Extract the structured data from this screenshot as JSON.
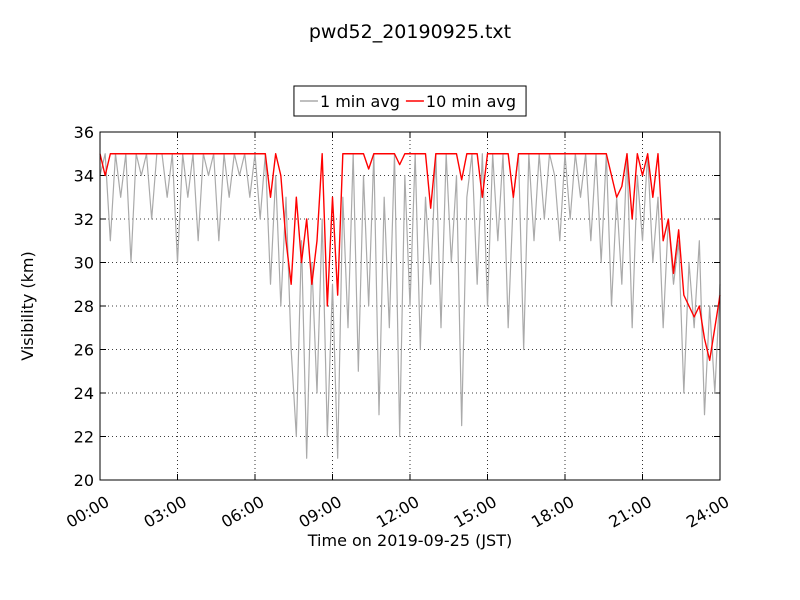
{
  "chart_data": {
    "type": "line",
    "title": "pwd52_20190925.txt",
    "xlabel": "Time on 2019-09-25 (JST)",
    "ylabel": "Visibility (km)",
    "x": [
      0,
      0.2,
      0.4,
      0.6,
      0.8,
      1,
      1.2,
      1.4,
      1.6,
      1.8,
      2,
      2.2,
      2.4,
      2.6,
      2.8,
      3,
      3.2,
      3.4,
      3.6,
      3.8,
      4,
      4.2,
      4.4,
      4.6,
      4.8,
      5,
      5.2,
      5.4,
      5.6,
      5.8,
      6,
      6.2,
      6.4,
      6.6,
      6.8,
      7,
      7.2,
      7.4,
      7.6,
      7.8,
      8,
      8.2,
      8.4,
      8.6,
      8.8,
      9,
      9.2,
      9.4,
      9.6,
      9.8,
      10,
      10.2,
      10.4,
      10.6,
      10.8,
      11,
      11.2,
      11.4,
      11.6,
      11.8,
      12,
      12.2,
      12.4,
      12.6,
      12.8,
      13,
      13.2,
      13.4,
      13.6,
      13.8,
      14,
      14.2,
      14.4,
      14.6,
      14.8,
      15,
      15.2,
      15.4,
      15.6,
      15.8,
      16,
      16.2,
      16.4,
      16.6,
      16.8,
      17,
      17.2,
      17.4,
      17.6,
      17.8,
      18,
      18.2,
      18.4,
      18.6,
      18.8,
      19,
      19.2,
      19.4,
      19.6,
      19.8,
      20,
      20.2,
      20.4,
      20.6,
      20.8,
      21,
      21.2,
      21.4,
      21.6,
      21.8,
      22,
      22.2,
      22.4,
      22.6,
      22.8,
      23,
      23.2,
      23.4,
      23.6,
      23.8,
      24
    ],
    "series": [
      {
        "name": "1 min avg",
        "color": "#aaaaaa",
        "values": [
          34,
          35,
          31,
          35,
          33,
          35,
          30,
          35,
          34,
          35,
          32,
          35,
          35,
          33,
          35,
          30,
          35,
          33,
          35,
          31,
          35,
          34,
          35,
          31,
          35,
          33,
          35,
          34,
          35,
          33,
          35,
          32,
          35,
          29,
          34,
          28,
          33,
          26,
          22,
          31,
          21,
          30,
          24,
          32,
          22,
          29,
          21,
          33,
          27,
          35,
          25,
          34,
          28,
          35,
          23,
          33,
          27,
          35,
          22,
          34,
          28,
          35,
          26,
          33,
          29,
          35,
          27,
          35,
          30,
          34,
          22.5,
          33,
          35,
          29,
          35,
          28,
          35,
          31,
          35,
          27,
          33,
          35,
          26,
          35,
          31,
          35,
          32,
          35,
          34,
          31,
          35,
          32,
          35,
          33,
          35,
          31,
          35,
          30,
          35,
          28,
          33,
          29,
          35,
          27,
          34,
          31,
          35,
          30,
          33,
          27,
          32,
          29,
          31,
          24,
          30,
          27,
          31,
          23,
          28,
          24,
          29
        ]
      },
      {
        "name": "10 min avg",
        "color": "#ff0000",
        "values": [
          35,
          34,
          35,
          35,
          35,
          35,
          35,
          35,
          35,
          35,
          35,
          35,
          35,
          35,
          35,
          35,
          35,
          35,
          35,
          35,
          35,
          35,
          35,
          35,
          35,
          35,
          35,
          35,
          35,
          35,
          35,
          35,
          35,
          33,
          35,
          34,
          31,
          29,
          33,
          30,
          32,
          29,
          31,
          35,
          28,
          33,
          28.5,
          35,
          35,
          35,
          35,
          35,
          34.3,
          35,
          35,
          35,
          35,
          35,
          34.5,
          35,
          35,
          35,
          35,
          35,
          32.5,
          35,
          35,
          35,
          35,
          35,
          33.8,
          35,
          35,
          35,
          33,
          35,
          35,
          35,
          35,
          35,
          33,
          35,
          35,
          35,
          35,
          35,
          35,
          35,
          35,
          35,
          35,
          35,
          35,
          35,
          35,
          35,
          35,
          35,
          35,
          34,
          33,
          33.5,
          35,
          32,
          35,
          34,
          35,
          33,
          35,
          31,
          32,
          29.5,
          31.5,
          28.5,
          28,
          27.5,
          28,
          26.5,
          25.5,
          27,
          28.5
        ]
      }
    ],
    "xlim": [
      0,
      24
    ],
    "xticks": [
      {
        "value": 0,
        "label": "00:00"
      },
      {
        "value": 3,
        "label": "03:00"
      },
      {
        "value": 6,
        "label": "06:00"
      },
      {
        "value": 9,
        "label": "09:00"
      },
      {
        "value": 12,
        "label": "12:00"
      },
      {
        "value": 15,
        "label": "15:00"
      },
      {
        "value": 18,
        "label": "18:00"
      },
      {
        "value": 21,
        "label": "21:00"
      },
      {
        "value": 24,
        "label": "24:00"
      }
    ],
    "ylim": [
      20,
      36
    ],
    "yticks": [
      20,
      22,
      24,
      26,
      28,
      30,
      32,
      34,
      36
    ],
    "grid": true,
    "legend": "upper center"
  }
}
